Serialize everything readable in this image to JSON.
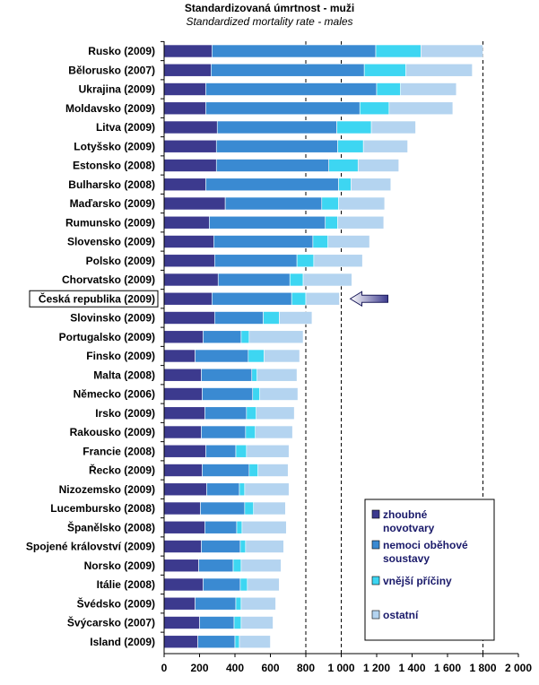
{
  "title": "Standardizovaná úmrtnost - muži",
  "subtitle": "Standardized mortality rate - males",
  "chart_data": {
    "type": "bar",
    "orientation": "horizontal",
    "stacked": true,
    "title": "Standardizovaná úmrtnost - muži",
    "subtitle": "Standardized mortality rate - males",
    "xlim": [
      0,
      2000
    ],
    "xticks": [
      "0",
      "200",
      "400",
      "600",
      "800",
      "1 000",
      "1 200",
      "1 400",
      "1 600",
      "1 800",
      "2 000"
    ],
    "grid": "dashed vertical at 800, 1000, 1800",
    "highlighted_category": "Česká republika (2009)",
    "legend_position": "bottom-right",
    "categories": [
      "Rusko  (2009)",
      "Bělorusko  (2007)",
      "Ukrajina (2009)",
      "Moldavsko (2009)",
      "Litva  (2009)",
      "Lotyšsko (2009)",
      "Estonsko  (2008)",
      "Bulharsko (2008)",
      "Maďarsko  (2009)",
      "Rumunsko (2009)",
      "Slovensko  (2009)",
      "Polsko  (2009)",
      "Chorvatsko (2009)",
      "Česká republika (2009)",
      "Slovinsko (2009)",
      "Portugalsko  (2009)",
      "Finsko  (2009)",
      "Malta  (2008)",
      "Německo  (2006)",
      "Irsko  (2009)",
      "Rakousko (2009)",
      "Francie (2008)",
      "Řecko (2009)",
      "Nizozemsko (2009)",
      "Lucembursko (2008)",
      "Španělsko  (2008)",
      "Spojené království (2009)",
      "Norsko  (2009)",
      "Itálie (2008)",
      "Švédsko  (2009)",
      "Švýcarsko  (2007)",
      "Island  (2009)"
    ],
    "series": [
      {
        "name": "zhoubné novotvary",
        "color": "#3c3a8e",
        "values": [
          270,
          265,
          235,
          235,
          300,
          295,
          295,
          235,
          345,
          255,
          280,
          285,
          305,
          270,
          285,
          220,
          175,
          210,
          215,
          230,
          210,
          235,
          215,
          240,
          205,
          230,
          210,
          195,
          220,
          175,
          200,
          190
        ]
      },
      {
        "name": "nemoci oběhové soustavy",
        "color": "#3a8ad2",
        "values": [
          925,
          865,
          965,
          870,
          675,
          685,
          635,
          750,
          545,
          655,
          560,
          465,
          405,
          450,
          275,
          215,
          300,
          285,
          285,
          235,
          250,
          170,
          265,
          185,
          250,
          180,
          220,
          195,
          210,
          230,
          195,
          210
        ]
      },
      {
        "name": "vnější příčiny",
        "color": "#3dd6f2",
        "values": [
          255,
          235,
          135,
          165,
          195,
          145,
          165,
          70,
          95,
          70,
          85,
          95,
          75,
          80,
          90,
          45,
          90,
          30,
          40,
          55,
          55,
          60,
          50,
          30,
          50,
          30,
          30,
          45,
          40,
          30,
          40,
          25
        ]
      },
      {
        "name": "ostatní",
        "color": "#b4d4f0",
        "values": [
          350,
          375,
          315,
          360,
          250,
          250,
          230,
          225,
          260,
          260,
          235,
          275,
          275,
          190,
          185,
          305,
          200,
          225,
          215,
          215,
          210,
          240,
          170,
          250,
          180,
          250,
          215,
          225,
          180,
          195,
          180,
          175
        ]
      }
    ],
    "legend": [
      {
        "label_lines": [
          "zhoubné",
          "novotvary"
        ],
        "color": "#3c3a8e"
      },
      {
        "label_lines": [
          "nemoci oběhové",
          "soustavy"
        ],
        "color": "#3a8ad2"
      },
      {
        "label_lines": [
          "vnější příčiny"
        ],
        "color": "#3dd6f2"
      },
      {
        "label_lines": [
          "ostatní"
        ],
        "color": "#b4d4f0"
      }
    ]
  }
}
